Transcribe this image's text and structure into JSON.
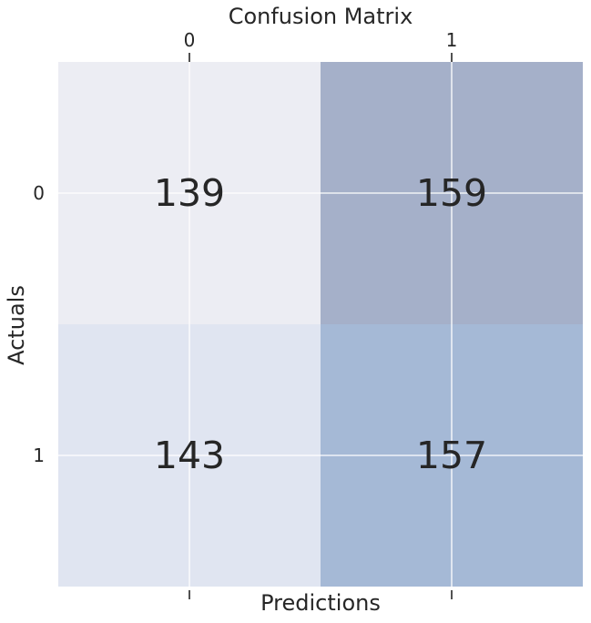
{
  "chart_data": {
    "type": "heatmap",
    "title": "Confusion Matrix",
    "xlabel": "Predictions",
    "ylabel": "Actuals",
    "x_categories": [
      "0",
      "1"
    ],
    "y_categories": [
      "0",
      "1"
    ],
    "values": [
      [
        139,
        159
      ],
      [
        143,
        157
      ]
    ],
    "x_tick_position": "top",
    "grid": true,
    "colors": {
      "cell_0_0": "#ECEDF3",
      "cell_0_1": "#A5B0C9",
      "cell_1_0": "#E0E5F1",
      "cell_1_1": "#A5B9D6",
      "grid": "#FFFFFF",
      "text": "#262626"
    }
  }
}
